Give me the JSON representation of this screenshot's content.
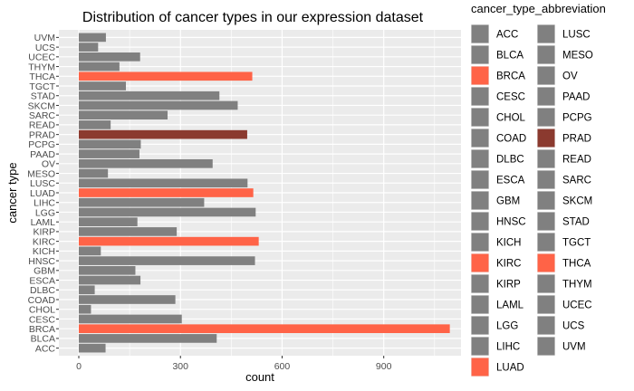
{
  "chart_data": {
    "type": "bar",
    "orientation": "horizontal",
    "title": "Distribution of cancer types in our expression dataset",
    "xlabel": "count",
    "ylabel": "cancer type",
    "xlim": [
      0,
      1120
    ],
    "x_ticks": [
      0,
      300,
      600,
      900
    ],
    "grid": true,
    "legend_position": "right",
    "legend_title": "cancer_type_abbreviation",
    "colors": {
      "default": "#808080",
      "highlight": "#FF6347",
      "dark": "#8B3A2F",
      "panel_background": "#EBEBEB",
      "grid": "#ffffff"
    },
    "categories": [
      "ACC",
      "BLCA",
      "BRCA",
      "CESC",
      "CHOL",
      "COAD",
      "DLBC",
      "ESCA",
      "GBM",
      "HNSC",
      "KICH",
      "KIRC",
      "KIRP",
      "LAML",
      "LGG",
      "LIHC",
      "LUAD",
      "LUSC",
      "MESO",
      "OV",
      "PAAD",
      "PCPG",
      "PRAD",
      "READ",
      "SARC",
      "SKCM",
      "STAD",
      "TGCT",
      "THCA",
      "THYM",
      "UCEC",
      "UCS",
      "UVM"
    ],
    "values": [
      79,
      407,
      1095,
      304,
      36,
      285,
      47,
      182,
      167,
      520,
      65,
      531,
      289,
      173,
      522,
      370,
      515,
      498,
      86,
      395,
      179,
      183,
      497,
      94,
      262,
      469,
      415,
      139,
      512,
      120,
      181,
      57,
      80
    ],
    "fill_class": [
      "default",
      "default",
      "highlight",
      "default",
      "default",
      "default",
      "default",
      "default",
      "default",
      "default",
      "default",
      "highlight",
      "default",
      "default",
      "default",
      "default",
      "highlight",
      "default",
      "default",
      "default",
      "default",
      "default",
      "dark",
      "default",
      "default",
      "default",
      "default",
      "default",
      "highlight",
      "default",
      "default",
      "default",
      "default"
    ]
  }
}
